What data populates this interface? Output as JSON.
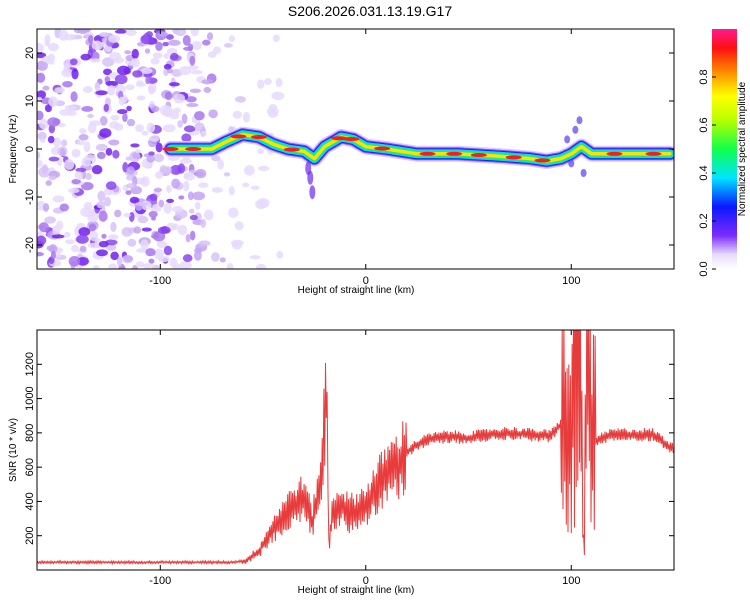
{
  "title": "S206.2026.031.13.19.G17",
  "chart_data": [
    {
      "type": "heatmap",
      "xlabel": "Height of straight line (km)",
      "ylabel": "Frequency (Hz)",
      "xlim": [
        -160,
        150
      ],
      "ylim": [
        -25,
        25
      ],
      "xticks": [
        -100,
        0,
        100
      ],
      "yticks": [
        -20,
        -10,
        0,
        10,
        20
      ],
      "colorbar": {
        "label": "Normalized spectral amplitude",
        "range": [
          0,
          1
        ],
        "ticks": [
          "0.0",
          "0.2",
          "0.4",
          "0.6",
          "0.8"
        ],
        "tick_values": [
          0.0,
          0.2,
          0.4,
          0.6,
          0.8
        ]
      },
      "noise_region_x": [
        -160,
        -75
      ],
      "ridge": [
        {
          "x": -95,
          "f": 0.0
        },
        {
          "x": -85,
          "f": 0.0
        },
        {
          "x": -75,
          "f": 0.0
        },
        {
          "x": -68,
          "f": 1.5
        },
        {
          "x": -60,
          "f": 3.0
        },
        {
          "x": -52,
          "f": 2.5
        },
        {
          "x": -45,
          "f": 1.0
        },
        {
          "x": -38,
          "f": 0.0
        },
        {
          "x": -30,
          "f": -0.5
        },
        {
          "x": -25,
          "f": -2.0
        },
        {
          "x": -20,
          "f": 0.5
        },
        {
          "x": -12,
          "f": 2.5
        },
        {
          "x": -6,
          "f": 2.0
        },
        {
          "x": 0,
          "f": 0.5
        },
        {
          "x": 10,
          "f": 0.0
        },
        {
          "x": 25,
          "f": -1.0
        },
        {
          "x": 45,
          "f": -1.0
        },
        {
          "x": 65,
          "f": -1.5
        },
        {
          "x": 80,
          "f": -2.0
        },
        {
          "x": 88,
          "f": -2.5
        },
        {
          "x": 95,
          "f": -2.0
        },
        {
          "x": 100,
          "f": -1.0
        },
        {
          "x": 105,
          "f": 0.5
        },
        {
          "x": 110,
          "f": -1.0
        },
        {
          "x": 130,
          "f": -1.0
        },
        {
          "x": 148,
          "f": -1.0
        }
      ]
    },
    {
      "type": "line",
      "xlabel": "Height of straight line (km)",
      "ylabel": "SNR (10 * v/v)",
      "xlim": [
        -160,
        150
      ],
      "ylim": [
        0,
        1400
      ],
      "xticks": [
        -100,
        0,
        100
      ],
      "yticks": [
        200,
        400,
        600,
        800,
        1000,
        1200
      ],
      "color": "#e83c3c",
      "series": [
        {
          "name": "SNR",
          "x": [
            -160,
            -140,
            -120,
            -100,
            -80,
            -65,
            -58,
            -52,
            -45,
            -40,
            -35,
            -30,
            -26,
            -22,
            -19,
            -18,
            -16,
            -12,
            -8,
            -4,
            0,
            5,
            10,
            15,
            20,
            25,
            30,
            40,
            50,
            60,
            70,
            80,
            90,
            95,
            98,
            100,
            102,
            104,
            106,
            108,
            110,
            112,
            120,
            130,
            140,
            150
          ],
          "y": [
            45,
            45,
            45,
            45,
            45,
            45,
            55,
            110,
            240,
            320,
            380,
            420,
            280,
            520,
            1050,
            150,
            350,
            380,
            330,
            350,
            380,
            470,
            560,
            600,
            690,
            730,
            760,
            780,
            770,
            790,
            800,
            790,
            780,
            850,
            900,
            700,
            1350,
            1380,
            150,
            1280,
            800,
            750,
            790,
            790,
            790,
            700
          ]
        }
      ]
    }
  ]
}
